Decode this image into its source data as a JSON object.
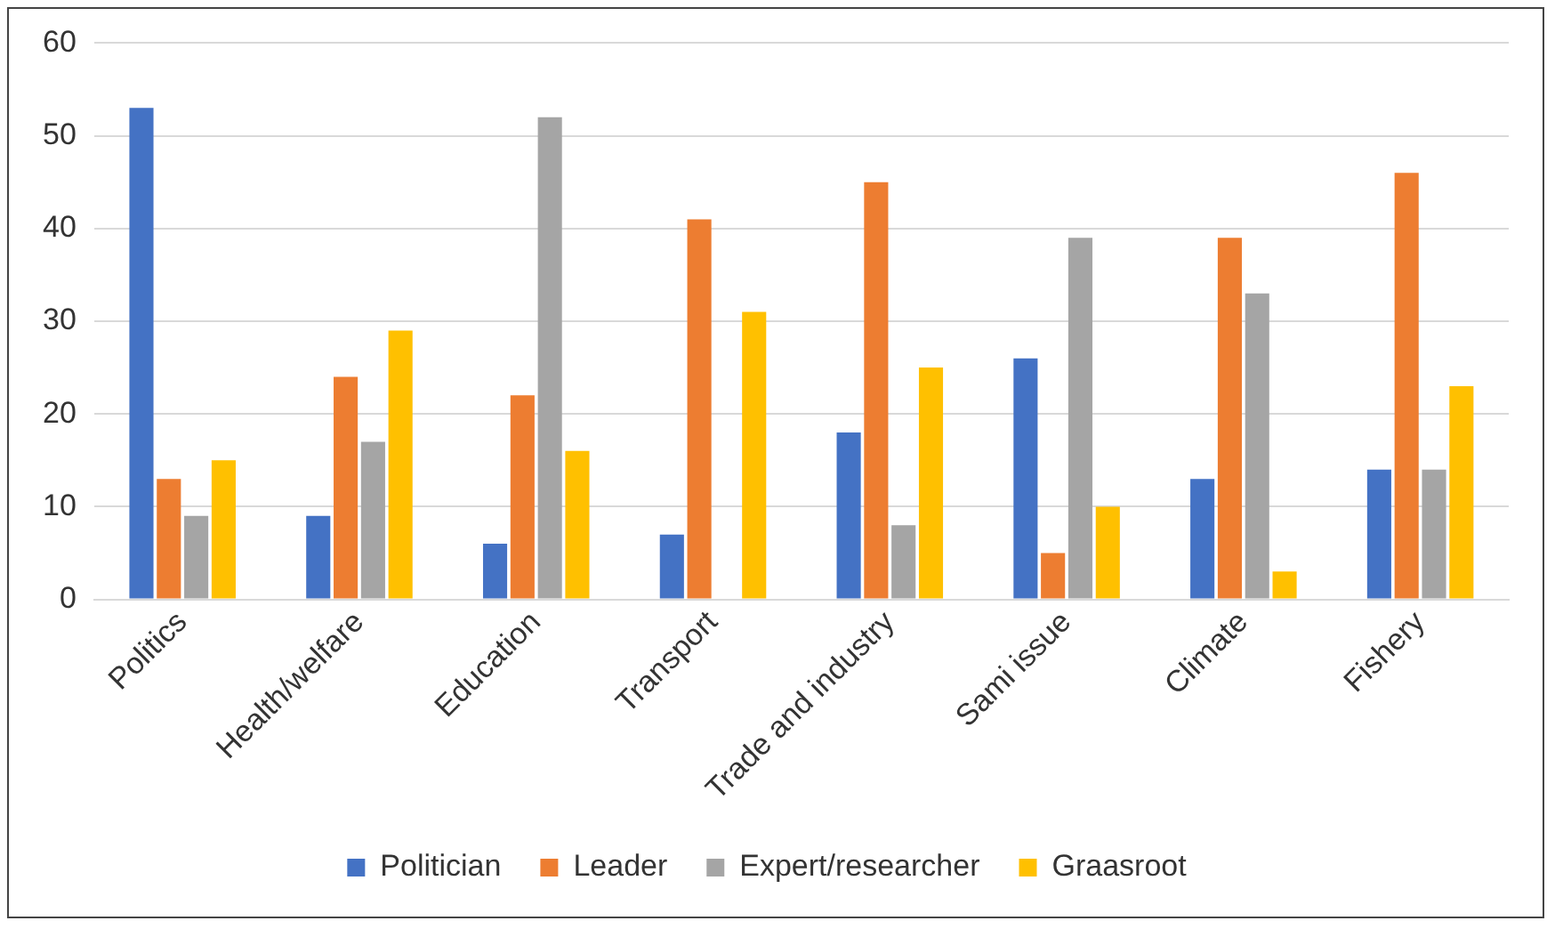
{
  "chart_data": {
    "type": "bar",
    "categories": [
      "Politics",
      "Health/welfare",
      "Education",
      "Transport",
      "Trade and industry",
      "Sami issue",
      "Climate",
      "Fishery"
    ],
    "series": [
      {
        "name": "Politician",
        "color": "#4472c4",
        "values": [
          53,
          9,
          6,
          7,
          18,
          26,
          13,
          14
        ]
      },
      {
        "name": "Leader",
        "color": "#ed7d31",
        "values": [
          13,
          24,
          22,
          41,
          45,
          5,
          39,
          46
        ]
      },
      {
        "name": "Expert/researcher",
        "color": "#a5a5a5",
        "values": [
          9,
          17,
          52,
          0,
          8,
          39,
          33,
          14
        ]
      },
      {
        "name": "Graasroot",
        "color": "#ffc000",
        "values": [
          15,
          29,
          16,
          31,
          25,
          10,
          3,
          23
        ]
      }
    ],
    "ylim": [
      0,
      60
    ],
    "yticks": [
      0,
      10,
      20,
      30,
      40,
      50,
      60
    ],
    "grid": "y",
    "legend": "bottom"
  }
}
